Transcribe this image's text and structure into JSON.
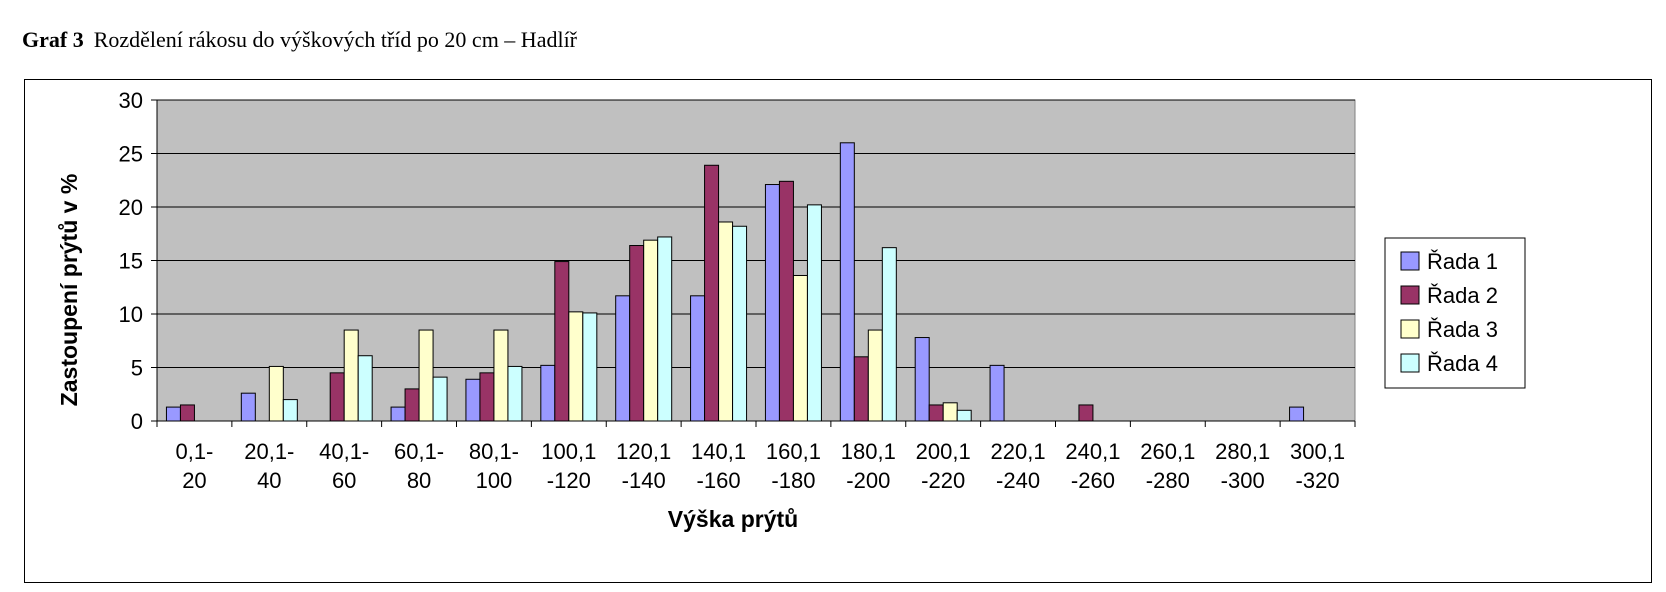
{
  "caption": {
    "number": "Graf 3",
    "text": "Rozdělení rákosu do výškových tříd po 20 cm – Hadlíř"
  },
  "chart_data": {
    "type": "bar",
    "xlabel": "Výška prýtů",
    "ylabel": "Zastoupení prýtů v %",
    "ylim": [
      0,
      30
    ],
    "yticks": [
      0,
      5,
      10,
      15,
      20,
      25,
      30
    ],
    "grid": true,
    "legend_position": "right",
    "plot_background": "#C0C0C0",
    "categories": [
      [
        "0,1-",
        "20"
      ],
      [
        "20,1-",
        "40"
      ],
      [
        "40,1-",
        "60"
      ],
      [
        "60,1-",
        "80"
      ],
      [
        "80,1-",
        "100"
      ],
      [
        "100,1",
        "-120"
      ],
      [
        "120,1",
        "-140"
      ],
      [
        "140,1",
        "-160"
      ],
      [
        "160,1",
        "-180"
      ],
      [
        "180,1",
        "-200"
      ],
      [
        "200,1",
        "-220"
      ],
      [
        "220,1",
        "-240"
      ],
      [
        "240,1",
        "-260"
      ],
      [
        "260,1",
        "-280"
      ],
      [
        "280,1",
        "-300"
      ],
      [
        "300,1",
        "-320"
      ]
    ],
    "series": [
      {
        "name": "Řada 1",
        "color": "#9999FF",
        "values": [
          1.3,
          2.6,
          0,
          1.3,
          3.9,
          5.2,
          11.7,
          11.7,
          22.1,
          26.0,
          7.8,
          5.2,
          0,
          0,
          0,
          1.3
        ]
      },
      {
        "name": "Řada 2",
        "color": "#993366",
        "values": [
          1.5,
          0,
          4.5,
          3.0,
          4.5,
          14.9,
          16.4,
          23.9,
          22.4,
          6.0,
          1.5,
          0,
          1.5,
          0,
          0,
          0
        ]
      },
      {
        "name": "Řada 3",
        "color": "#FFFFCC",
        "values": [
          0,
          5.1,
          8.5,
          8.5,
          8.5,
          10.2,
          16.9,
          18.6,
          13.6,
          8.5,
          1.7,
          0,
          0,
          0,
          0,
          0
        ]
      },
      {
        "name": "Řada 4",
        "color": "#CCFFFF",
        "values": [
          0,
          2.0,
          6.1,
          4.1,
          5.1,
          10.1,
          17.2,
          18.2,
          20.2,
          16.2,
          1.0,
          0,
          0,
          0,
          0,
          0
        ]
      }
    ]
  }
}
